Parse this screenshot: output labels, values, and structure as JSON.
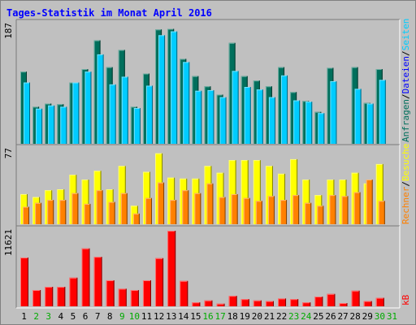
{
  "chart_data": {
    "type": "bar",
    "title": "Tages-Statistik im Monat April 2016",
    "x": [
      1,
      2,
      3,
      4,
      5,
      6,
      7,
      8,
      9,
      10,
      11,
      12,
      13,
      14,
      15,
      16,
      17,
      18,
      19,
      20,
      21,
      22,
      23,
      24,
      25,
      26,
      27,
      28,
      29,
      30,
      31
    ],
    "weekend_days": [
      2,
      3,
      9,
      10,
      16,
      17,
      23,
      24,
      30,
      31
    ],
    "panels": [
      {
        "key": "top",
        "ymax_label": "187",
        "ymax": 187,
        "series": [
          {
            "name": "Anfragen",
            "color": "#006f5c",
            "values": [
              113,
              58,
              63,
              62,
              96,
              117,
              162,
              120,
              147,
              58,
              110,
              179,
              180,
              133,
              106,
              90,
              77,
              158,
              106,
              99,
              90,
              120,
              81,
              67,
              50,
              119,
              0,
              120,
              64,
              117,
              0
            ]
          },
          {
            "name": "Dateien",
            "color": "#0000ff",
            "values": [
              0,
              0,
              0,
              0,
              0,
              0,
              0,
              0,
              0,
              0,
              0,
              0,
              0,
              0,
              0,
              0,
              0,
              0,
              0,
              0,
              0,
              0,
              0,
              0,
              0,
              0,
              0,
              0,
              0,
              0,
              0
            ]
          },
          {
            "name": "Seiten",
            "color": "#00ccff",
            "values": [
              96,
              55,
              60,
              58,
              96,
              113,
              140,
              93,
              105,
              56,
              91,
              170,
              176,
              128,
              83,
              84,
              73,
              114,
              89,
              85,
              73,
              107,
              68,
              66,
              48,
              98,
              0,
              86,
              63,
              100,
              0
            ]
          }
        ]
      },
      {
        "key": "middle",
        "ymax_label": "77",
        "ymax": 77,
        "series": [
          {
            "name": "Besuche",
            "color": "#ffff00",
            "values": [
              31,
              28,
              35,
              36,
              51,
              46,
              55,
              36,
              60,
              19,
              54,
              73,
              48,
              47,
              47,
              60,
              53,
              66,
              66,
              66,
              60,
              52,
              67,
              46,
              30,
              46,
              46,
              53,
              42,
              62,
              0
            ]
          },
          {
            "name": "Rechner",
            "color": "#ff8000",
            "values": [
              18,
              22,
              25,
              25,
              32,
              21,
              35,
              23,
              32,
              11,
              27,
              43,
              25,
              35,
              32,
              42,
              28,
              31,
              27,
              24,
              29,
              25,
              30,
              22,
              19,
              30,
              29,
              33,
              46,
              24,
              0
            ]
          }
        ]
      },
      {
        "key": "bottom",
        "ymax_label": "11621",
        "ymax": 11621,
        "series": [
          {
            "name": "kB",
            "color": "#ff0000",
            "values": [
              7500,
              2500,
              3000,
              3000,
              4400,
              8900,
              7600,
              4000,
              2700,
              2500,
              4000,
              7400,
              11621,
              3900,
              600,
              900,
              400,
              1600,
              1100,
              900,
              800,
              1200,
              1100,
              600,
              1500,
              1900,
              500,
              2400,
              800,
              1300,
              0
            ]
          }
        ]
      }
    ],
    "right_legend_top": [
      {
        "text": "Anfragen",
        "color": "#006f5c"
      },
      {
        "text": "Dateien",
        "color": "#0000ff"
      },
      {
        "text": "Seiten",
        "color": "#00ccff"
      }
    ],
    "right_legend_middle": [
      {
        "text": "Rechner",
        "color": "#ff8000"
      },
      {
        "text": "Besuche",
        "color": "#ffff00"
      }
    ],
    "right_legend_bottom": [
      {
        "text": "kB",
        "color": "#ff0000"
      }
    ],
    "legend_separator": "/",
    "colors": {
      "background": "#c0c0c0",
      "title": "#0000ff",
      "weekday_label": "#000000",
      "weekend_label": "#00aa00"
    }
  }
}
